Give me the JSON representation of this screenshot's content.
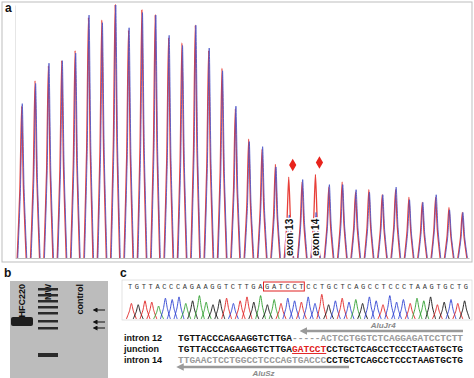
{
  "panel_labels": [
    "a",
    "b",
    "c"
  ],
  "chart_data": {
    "type": "peak",
    "x": [
      1,
      2,
      3,
      4,
      5,
      6,
      7,
      8,
      9,
      10,
      11,
      12,
      13,
      14,
      15,
      16,
      17,
      18,
      19,
      20,
      21,
      22,
      23,
      24,
      25,
      26,
      27,
      28,
      29,
      30,
      31,
      32,
      33,
      34
    ],
    "xlim": [
      0.5,
      34.5
    ],
    "ylim": [
      0,
      100
    ],
    "tick_labels": false,
    "series": [
      {
        "color": "#e8403a",
        "values": [
          60,
          70,
          76,
          78,
          82,
          95,
          94,
          100,
          90,
          98,
          96,
          87,
          85,
          92,
          82,
          75,
          59,
          47,
          43,
          37,
          32,
          30,
          33,
          28,
          30,
          26,
          27,
          25,
          27,
          24,
          22,
          24,
          20,
          18
        ]
      },
      {
        "color": "#4b55c8",
        "values": [
          61,
          69,
          77,
          78,
          81,
          96,
          93,
          100,
          91,
          97,
          96,
          88,
          84,
          92,
          83,
          74,
          60,
          46,
          44,
          36,
          17,
          31,
          18,
          29,
          29,
          27,
          26,
          25,
          28,
          23,
          22,
          25,
          19,
          18
        ]
      }
    ],
    "annotations": [
      {
        "text": "exon 13",
        "x": 21,
        "marker": "diamond",
        "color": "#e8231c"
      },
      {
        "text": "exon 14",
        "x": 23,
        "marker": "diamond",
        "color": "#e8231c"
      }
    ]
  },
  "gel": {
    "lanes": [
      "HFC220",
      "MW",
      "control"
    ]
  },
  "chromatogram": {
    "bases": "TGTTACCCAGAAGGTCTTGAGATCCTCCTGCTCAGCCTCCCTAAGTGCTG",
    "peak_heights": [
      60,
      55,
      70,
      65,
      50,
      80,
      75,
      85,
      60,
      70,
      90,
      65,
      55,
      75,
      80,
      60,
      70,
      85,
      65,
      90,
      55,
      75,
      60,
      80,
      70,
      65,
      85,
      60,
      95,
      55,
      70,
      80,
      65,
      75,
      60,
      85,
      70,
      55,
      90,
      65,
      75,
      60,
      80,
      70,
      85,
      55,
      65,
      75,
      60,
      70
    ]
  },
  "alignment": {
    "top_arrow_label": "AluJr4",
    "bottom_arrow_label": "AluSz",
    "rows": [
      {
        "label": "intron 12",
        "segments": [
          {
            "text": "TGTTACCCAGAAGGTCTTGA",
            "style": "bold"
          },
          {
            "text": "-----",
            "style": "gray"
          },
          {
            "text": "ACTCCTGGTCTCAGGAGATCCTCTT",
            "style": "gray"
          }
        ]
      },
      {
        "label": "junction",
        "segments": [
          {
            "text": "TGTTACCCAGAAGGTCTTGA",
            "style": "bold"
          },
          {
            "text": "GATCCT",
            "style": "red"
          },
          {
            "text": "CCTGCTCAGCCTCCCTAAGTGCTG",
            "style": "bold"
          }
        ]
      },
      {
        "label": "intron 14",
        "segments": [
          {
            "text": "TTGAACTCCTGGCCTCCCAGTGACCC",
            "style": "gray"
          },
          {
            "text": "CCTGCTCAGCCTCCCTAAGTGCTG",
            "style": "bold"
          }
        ]
      }
    ]
  }
}
